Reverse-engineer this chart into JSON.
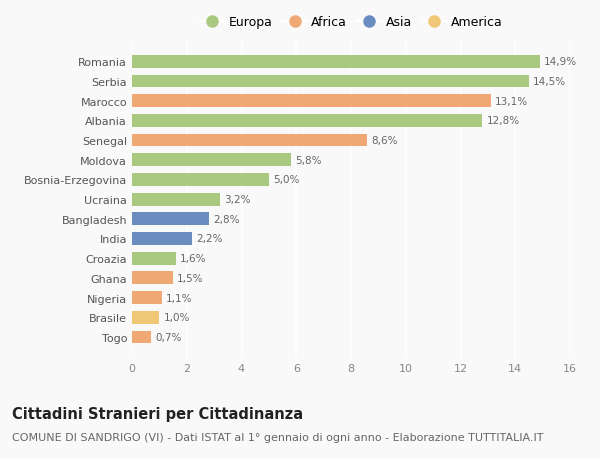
{
  "countries": [
    "Romania",
    "Serbia",
    "Marocco",
    "Albania",
    "Senegal",
    "Moldova",
    "Bosnia-Erzegovina",
    "Ucraina",
    "Bangladesh",
    "India",
    "Croazia",
    "Ghana",
    "Nigeria",
    "Brasile",
    "Togo"
  ],
  "values": [
    14.9,
    14.5,
    13.1,
    12.8,
    8.6,
    5.8,
    5.0,
    3.2,
    2.8,
    2.2,
    1.6,
    1.5,
    1.1,
    1.0,
    0.7
  ],
  "labels": [
    "14,9%",
    "14,5%",
    "13,1%",
    "12,8%",
    "8,6%",
    "5,8%",
    "5,0%",
    "3,2%",
    "2,8%",
    "2,2%",
    "1,6%",
    "1,5%",
    "1,1%",
    "1,0%",
    "0,7%"
  ],
  "continents": [
    "Europa",
    "Europa",
    "Africa",
    "Europa",
    "Africa",
    "Europa",
    "Europa",
    "Europa",
    "Asia",
    "Asia",
    "Europa",
    "Africa",
    "Africa",
    "America",
    "Africa"
  ],
  "colors": {
    "Europa": "#a8c97f",
    "Africa": "#f0a875",
    "Asia": "#6b8cbf",
    "America": "#f0c875"
  },
  "xlim": [
    0,
    16
  ],
  "xticks": [
    0,
    2,
    4,
    6,
    8,
    10,
    12,
    14,
    16
  ],
  "title": "Cittadini Stranieri per Cittadinanza",
  "subtitle": "COMUNE DI SANDRIGO (VI) - Dati ISTAT al 1° gennaio di ogni anno - Elaborazione TUTTITALIA.IT",
  "background_color": "#f9f9f9",
  "bar_height": 0.65,
  "title_fontsize": 10.5,
  "subtitle_fontsize": 8,
  "label_fontsize": 7.5,
  "tick_fontsize": 8,
  "legend_order": [
    "Europa",
    "Africa",
    "Asia",
    "America"
  ]
}
